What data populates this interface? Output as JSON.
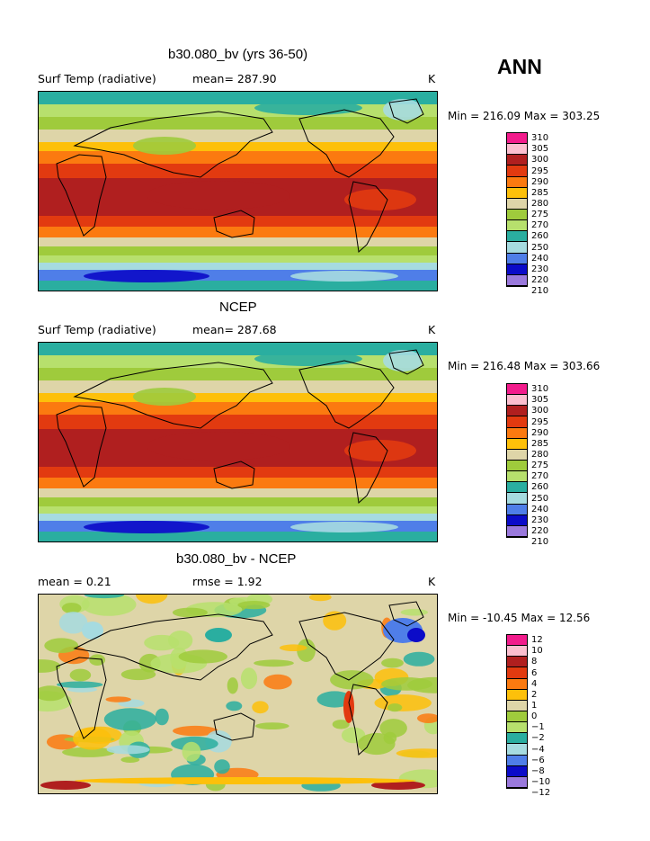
{
  "season": "ANN",
  "panels": [
    {
      "title": "b30.080_bv (yrs 36-50)",
      "left_label": "Surf Temp (radiative)",
      "mid_label": "mean= 287.90",
      "units": "K",
      "minmax": "Min = 216.09 Max = 303.25"
    },
    {
      "title": "NCEP",
      "left_label": "Surf Temp (radiative)",
      "mid_label": "mean= 287.68",
      "units": "K",
      "minmax": "Min = 216.48 Max = 303.66"
    },
    {
      "title": "b30.080_bv - NCEP",
      "left_label": "mean =    0.21",
      "mid_label": "rmse =    1.92",
      "units": "K",
      "minmax": "Min = -10.45 Max =   12.56"
    }
  ],
  "chart_data": [
    {
      "type": "heatmap",
      "title": "b30.080_bv (yrs 36-50)",
      "variable": "Surf Temp (radiative)",
      "units": "K",
      "mean": 287.9,
      "min": 216.09,
      "max": 303.25,
      "colorbar": {
        "levels": [
          310,
          305,
          300,
          295,
          290,
          285,
          280,
          275,
          270,
          260,
          250,
          240,
          230,
          220,
          210
        ],
        "colors": [
          "#f21c8c",
          "#fbbfcf",
          "#b01f1f",
          "#e23a10",
          "#fb7a10",
          "#fdc00a",
          "#ded5a8",
          "#9fcb3c",
          "#b7e06d",
          "#2aaea0",
          "#a6dbe0",
          "#4f7ee8",
          "#0b0bc8",
          "#9a79dc"
        ]
      }
    },
    {
      "type": "heatmap",
      "title": "NCEP",
      "variable": "Surf Temp (radiative)",
      "units": "K",
      "mean": 287.68,
      "min": 216.48,
      "max": 303.66,
      "colorbar": {
        "levels": [
          310,
          305,
          300,
          295,
          290,
          285,
          280,
          275,
          270,
          260,
          250,
          240,
          230,
          220,
          210
        ],
        "colors": [
          "#f21c8c",
          "#fbbfcf",
          "#b01f1f",
          "#e23a10",
          "#fb7a10",
          "#fdc00a",
          "#ded5a8",
          "#9fcb3c",
          "#b7e06d",
          "#2aaea0",
          "#a6dbe0",
          "#4f7ee8",
          "#0b0bc8",
          "#9a79dc"
        ]
      }
    },
    {
      "type": "heatmap",
      "title": "b30.080_bv - NCEP",
      "units": "K",
      "mean": 0.21,
      "rmse": 1.92,
      "min": -10.45,
      "max": 12.56,
      "colorbar": {
        "levels": [
          "12",
          "10",
          "8",
          "6",
          "4",
          "2",
          "1",
          "0",
          "-1",
          "-2",
          "-4",
          "-6",
          "-8",
          "-10",
          "-12"
        ],
        "colors": [
          "#f21c8c",
          "#fbbfcf",
          "#b01f1f",
          "#e23a10",
          "#fb7a10",
          "#fdc00a",
          "#ded5a8",
          "#9fcb3c",
          "#b7e06d",
          "#2aaea0",
          "#a6dbe0",
          "#4f7ee8",
          "#0b0bc8",
          "#9a79dc"
        ]
      }
    }
  ]
}
